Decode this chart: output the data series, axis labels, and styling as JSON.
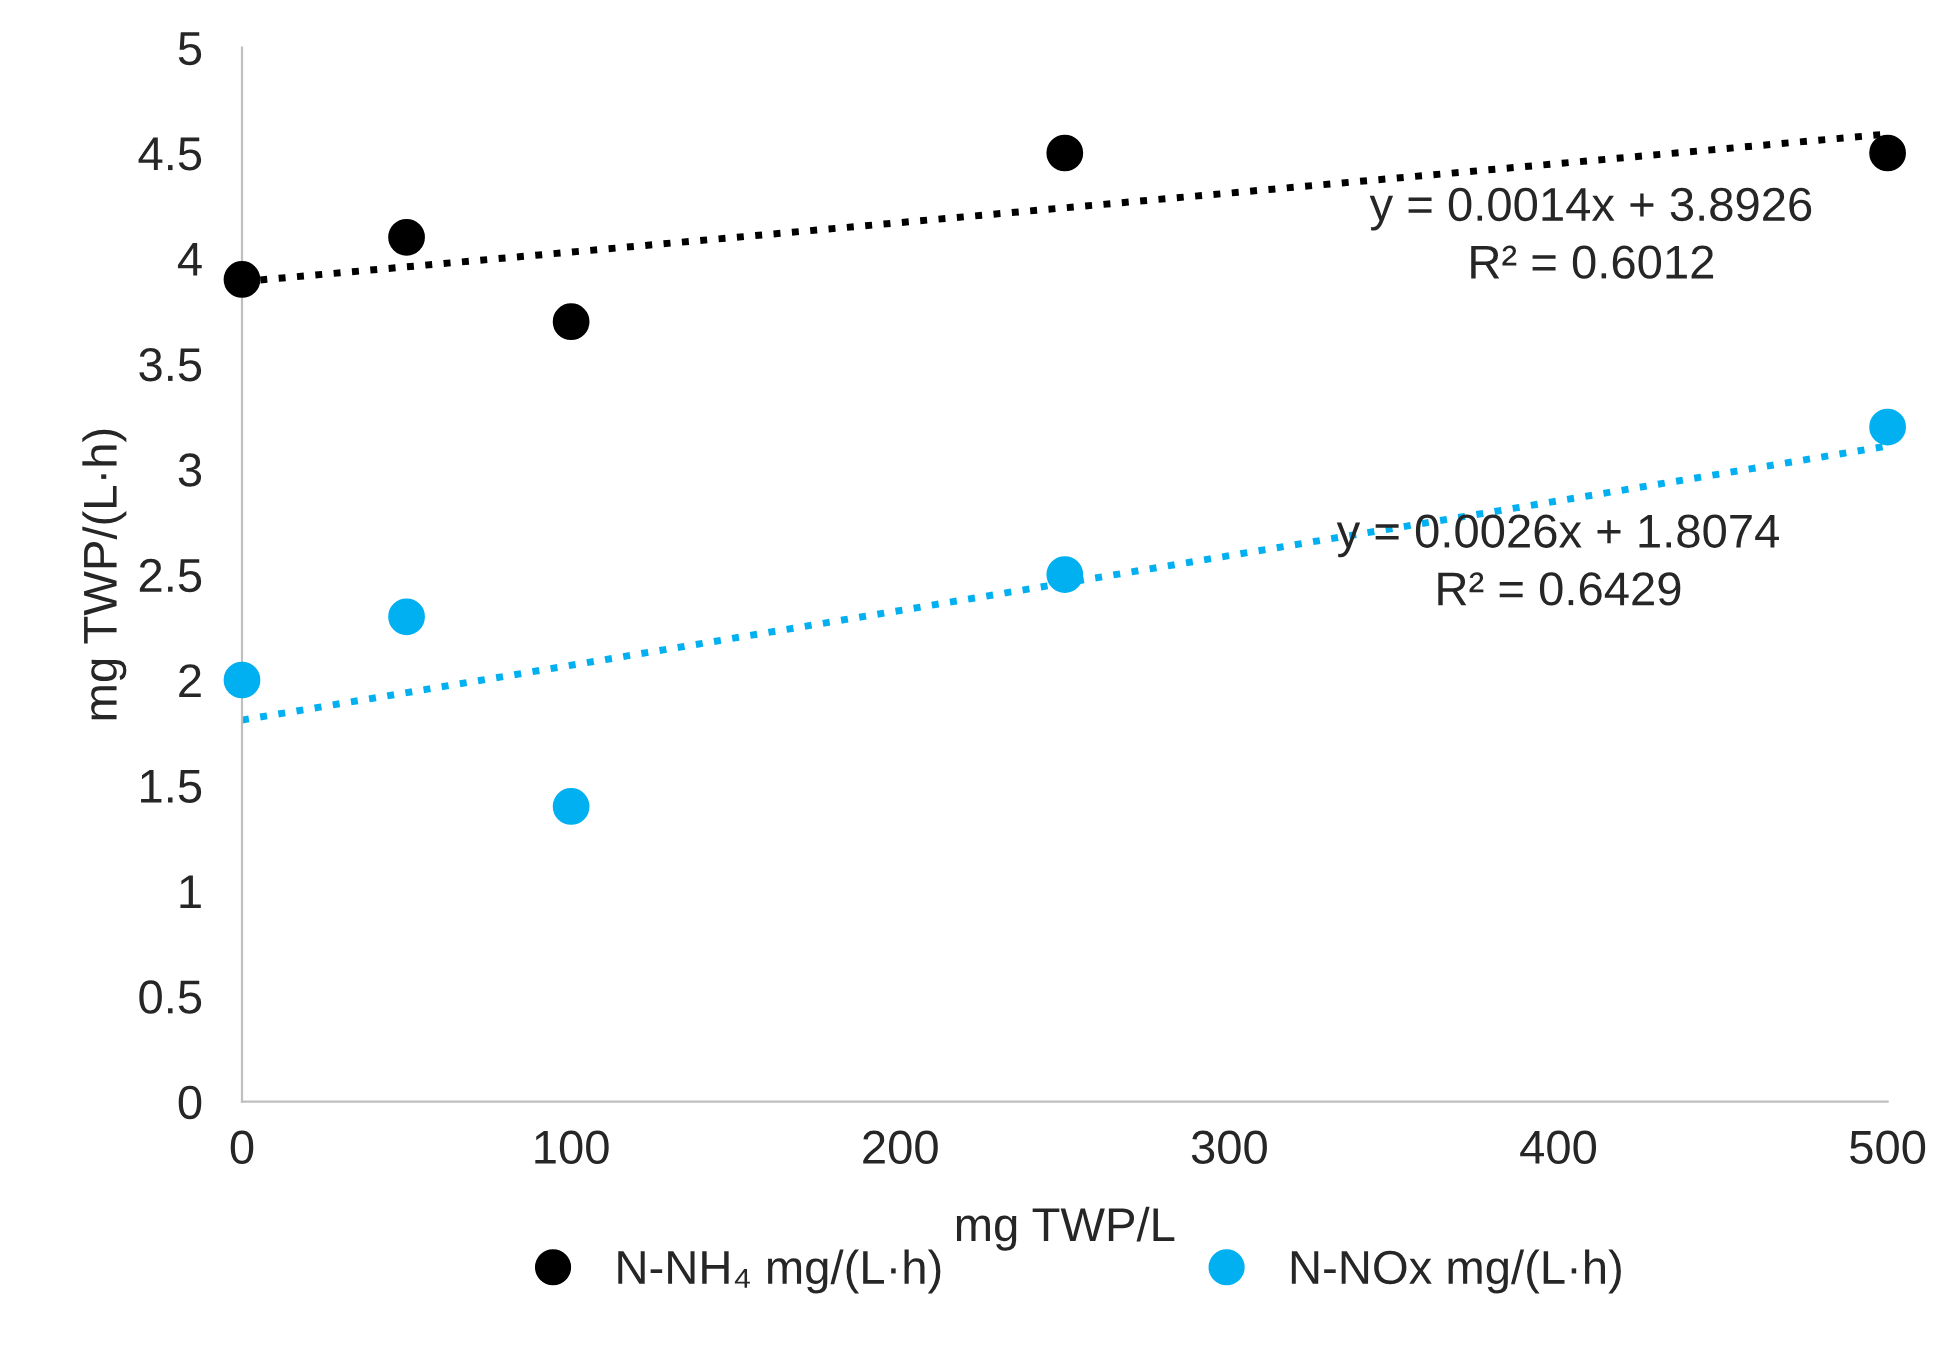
{
  "chart_data": {
    "type": "scatter",
    "xlabel": "mg TWP/L",
    "ylabel": "mg TWP/(L·h)",
    "x": [
      0,
      50,
      100,
      250,
      500
    ],
    "series": [
      {
        "name": "N-NH₄ mg/(L·h)",
        "color": "#000000",
        "values": [
          3.9,
          4.1,
          3.7,
          4.5,
          4.5
        ]
      },
      {
        "name": "N-NOx mg/(L·h)",
        "color": "#00b0f0",
        "values": [
          2.0,
          2.3,
          1.4,
          2.5,
          3.2
        ]
      },
      {
        "type": "line",
        "color": "#000000",
        "values": [
          3.89,
          null,
          null,
          null,
          4.59
        ],
        "line_style": "dotted",
        "marker": "none"
      },
      {
        "type": "line",
        "color": "#00b0f0",
        "values": [
          1.81,
          null,
          null,
          null,
          3.11
        ],
        "line_style": "dotted",
        "marker": "none"
      }
    ],
    "annotations": [
      "y = 0.0014x + 3.8926\nR² = 0.6012",
      "y = 0.0026x + 1.8074\nR² = 0.6429"
    ],
    "xlim": [
      0,
      500
    ],
    "xticks": [
      0,
      100,
      200,
      300,
      400,
      500
    ],
    "ylim": [
      0,
      5
    ],
    "yticks": [
      0,
      0.5,
      1,
      1.5,
      2,
      2.5,
      3,
      3.5,
      4,
      4.5,
      5
    ],
    "marker": "circle",
    "grid": false,
    "legend": "bottom"
  }
}
